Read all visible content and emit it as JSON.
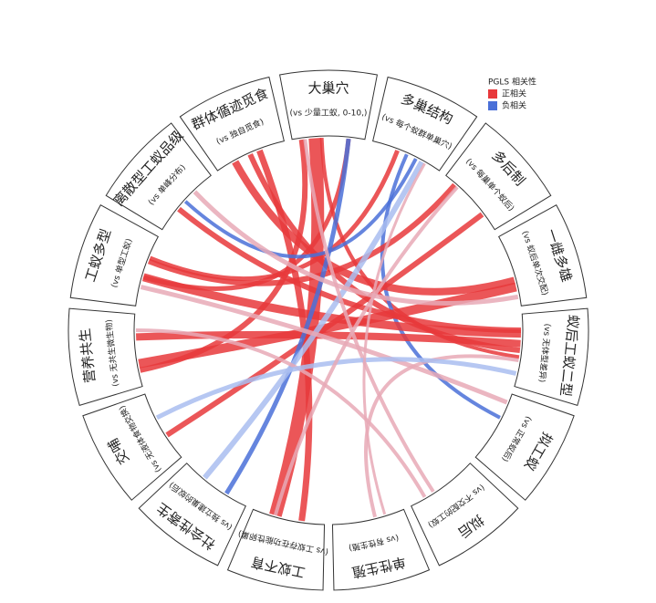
{
  "legend": {
    "title": "PGLS 相关性",
    "items": [
      {
        "label": "正相关",
        "color": "#e8383b"
      },
      {
        "label": "负相关",
        "color": "#4a70d8"
      }
    ]
  },
  "nodes": [
    {
      "label": "大巢穴",
      "sublabel": "(vs 少量工蚁, 0-10,)"
    },
    {
      "label": "多巢结构",
      "sublabel": "(vs 每个蚁群单巢穴)"
    },
    {
      "label": "多后制",
      "sublabel": "(vs 每巢单个蚁后)"
    },
    {
      "label": "一雌多雄",
      "sublabel": "(vs 蚁后单次交配)"
    },
    {
      "label": "蚁后工蚁二型",
      "sublabel": "(vs 无体型差异)"
    },
    {
      "label": "拟工蚁",
      "sublabel": "(vs 正常蚁后)"
    },
    {
      "label": "拟后",
      "sublabel": "(vs 不交配的工蚁)"
    },
    {
      "label": "单性生殖",
      "sublabel": "(vs 有性生殖)"
    },
    {
      "label": "工蚁不育",
      "sublabel": "(vs 工蚁存在功能性卵巢)"
    },
    {
      "label": "社会性寄生",
      "sublabel": "(vs 独立建巢的蚁后)"
    },
    {
      "label": "交哺",
      "sublabel": "(vs 无液体食物交换)"
    },
    {
      "label": "营养共生",
      "sublabel": "(vs 无共生微生物)"
    },
    {
      "label": "工蚁多型",
      "sublabel": "(vs 单型工蚁)"
    },
    {
      "label": "离散型工蚁品级",
      "sublabel": "(vs 单峰分布)"
    },
    {
      "label": "群体循迹觅食",
      "sublabel": "(vs 独自觅食)"
    }
  ]
}
